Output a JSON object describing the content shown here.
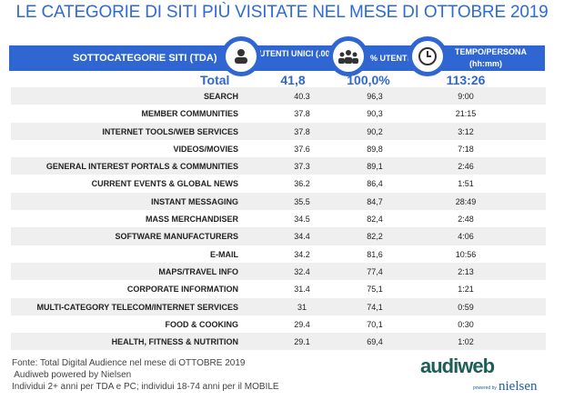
{
  "title": "LE CATEGORIE DI SITI PIÙ VISITATE NEL MESE DI OTTOBRE 2019",
  "header": {
    "col0": "SOTTOCATEGORIE SITI  (TDA)",
    "col1": "UTENTI UNICI (.000)",
    "col2": "% UTENTI",
    "col3": "TEMPO/PERSONA",
    "col3_sub": "(hh:mm)"
  },
  "total": {
    "label": "Total",
    "utenti": "41,8",
    "pct": "100,0%",
    "tempo": "113:26"
  },
  "rows": [
    {
      "label": "SEARCH",
      "utenti": "40.3",
      "pct": "96,3",
      "tempo": "9:00"
    },
    {
      "label": "MEMBER COMMUNITIES",
      "utenti": "37.8",
      "pct": "90,3",
      "tempo": "21:15"
    },
    {
      "label": "INTERNET TOOLS/WEB SERVICES",
      "utenti": "37.8",
      "pct": "90,2",
      "tempo": "3:12"
    },
    {
      "label": "VIDEOS/MOVIES",
      "utenti": "37.6",
      "pct": "89,8",
      "tempo": "7:18"
    },
    {
      "label": "GENERAL INTEREST PORTALS & COMMUNITIES",
      "utenti": "37.3",
      "pct": "89,1",
      "tempo": "2:46"
    },
    {
      "label": "CURRENT EVENTS & GLOBAL NEWS",
      "utenti": "36.2",
      "pct": "86,4",
      "tempo": "1:51"
    },
    {
      "label": "INSTANT MESSAGING",
      "utenti": "35.5",
      "pct": "84,7",
      "tempo": "28:49"
    },
    {
      "label": "MASS MERCHANDISER",
      "utenti": "34.5",
      "pct": "82,4",
      "tempo": "2:48"
    },
    {
      "label": "SOFTWARE MANUFACTURERS",
      "utenti": "34.4",
      "pct": "82,2",
      "tempo": "4:06"
    },
    {
      "label": "E-MAIL",
      "utenti": "34.2",
      "pct": "81,6",
      "tempo": "10:56"
    },
    {
      "label": "MAPS/TRAVEL INFO",
      "utenti": "32.4",
      "pct": "77,4",
      "tempo": "2:13"
    },
    {
      "label": "CORPORATE INFORMATION",
      "utenti": "31.4",
      "pct": "75,1",
      "tempo": "1:21"
    },
    {
      "label": "MULTI-CATEGORY TELECOM/INTERNET SERVICES",
      "utenti": "31",
      "pct": "74,1",
      "tempo": "0:59"
    },
    {
      "label": "FOOD & COOKING",
      "utenti": "29.4",
      "pct": "70,1",
      "tempo": "0:30"
    },
    {
      "label": "HEALTH, FITNESS & NUTRITION",
      "utenti": "29.1",
      "pct": "69,4",
      "tempo": "1:02"
    }
  ],
  "footer": [
    "Fonte: Total Digital Audience nel mese di OTTOBRE 2019",
    " Audiweb powered by Nielsen",
    "Individui 2+ anni per TDA e PC; individui 18-74 anni per il MOBILE"
  ],
  "logo": {
    "audiweb": "audiweb",
    "powered": "powered by",
    "nielsen": "nielsen"
  }
}
